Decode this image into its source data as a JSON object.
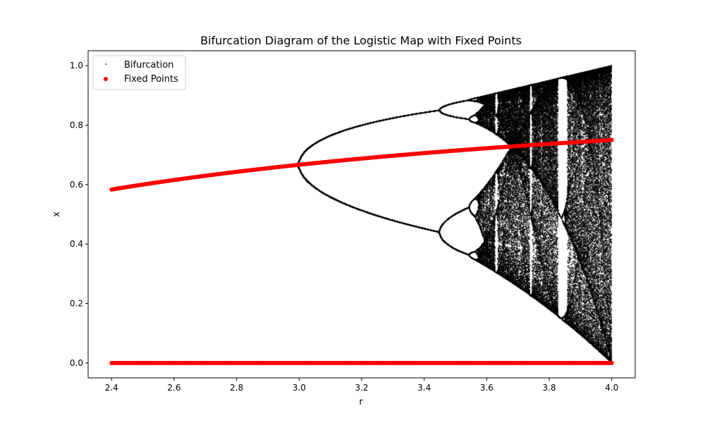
{
  "chart_data": {
    "type": "scatter",
    "title": "Bifurcation Diagram of the Logistic Map with Fixed Points",
    "xlabel": "r",
    "ylabel": "x",
    "xlim": [
      2.325,
      4.075
    ],
    "ylim": [
      -0.05,
      1.05
    ],
    "x_ticks": [
      "2.4",
      "2.6",
      "2.8",
      "3.0",
      "3.2",
      "3.4",
      "3.6",
      "3.8",
      "4.0"
    ],
    "y_ticks": [
      "0.0",
      "0.2",
      "0.4",
      "0.6",
      "0.8",
      "1.0"
    ],
    "grid": false,
    "legend_position": "top-left",
    "series": [
      {
        "name": "Bifurcation",
        "marker": "point",
        "color": "#000000",
        "generator": "logistic map x(n+1) = r*x(n)*(1-x(n)), plotted after transients",
        "r_range": [
          2.4,
          4.0
        ]
      },
      {
        "name": "Fixed Points",
        "marker": "circle",
        "color": "#ff0000",
        "generator": "fixed points x* = 0 and x* = 1 - 1/r",
        "r_range": [
          2.4,
          4.0
        ]
      }
    ]
  }
}
